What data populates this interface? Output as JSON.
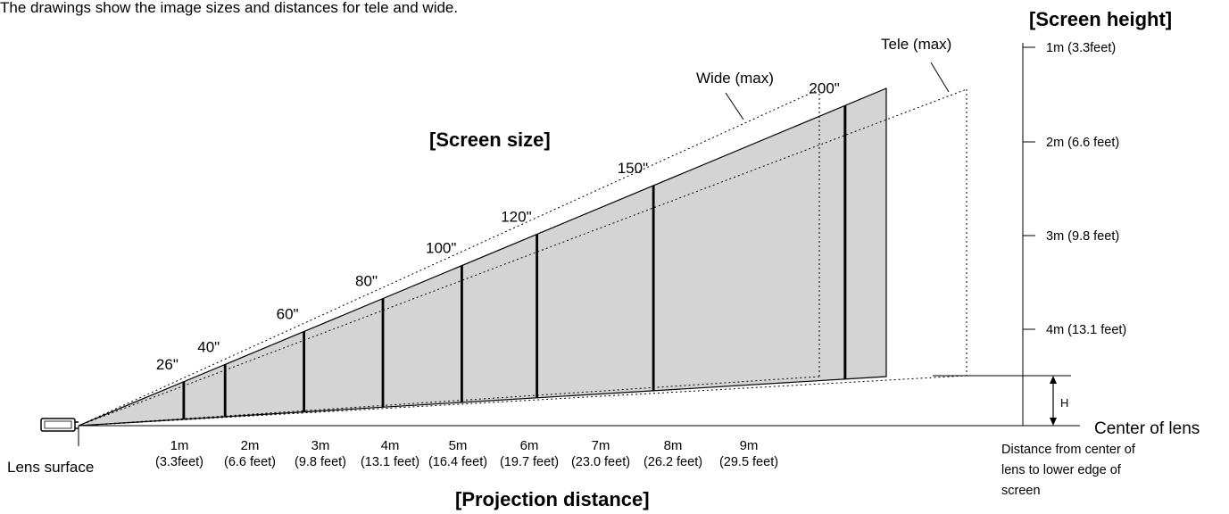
{
  "intro_text": "The drawings show the image sizes and distances for tele and wide.",
  "titles": {
    "screen_size": "[Screen size]",
    "screen_height": "[Screen height]",
    "projection_distance": "[Projection distance]"
  },
  "labels": {
    "wide": "Wide (max)",
    "tele": "Tele (max)",
    "lens_surface": "Lens surface",
    "center_of_lens": "Center of lens",
    "h_marker": "H",
    "lower_edge_note": [
      "Distance from center of",
      "lens to lower edge of",
      "screen"
    ]
  },
  "screen_sizes": [
    {
      "label": "26\"",
      "distance_m": 1.4
    },
    {
      "label": "40\"",
      "distance_m": 1.95
    },
    {
      "label": "60\"",
      "distance_m": 3.0
    },
    {
      "label": "80\"",
      "distance_m": 4.05
    },
    {
      "label": "100\"",
      "distance_m": 5.1
    },
    {
      "label": "120\"",
      "distance_m": 6.1
    },
    {
      "label": "150\"",
      "distance_m": 7.65
    },
    {
      "label": "200\"",
      "distance_m": 10.2
    }
  ],
  "distance_ticks": [
    {
      "metric": "1m",
      "imperial": "(3.3feet)"
    },
    {
      "metric": "2m",
      "imperial": "(6.6 feet)"
    },
    {
      "metric": "3m",
      "imperial": "(9.8 feet)"
    },
    {
      "metric": "4m",
      "imperial": "(13.1 feet)"
    },
    {
      "metric": "5m",
      "imperial": "(16.4 feet)"
    },
    {
      "metric": "6m",
      "imperial": "(19.7 feet)"
    },
    {
      "metric": "7m",
      "imperial": "(23.0 feet)"
    },
    {
      "metric": "8m",
      "imperial": "(26.2 feet)"
    },
    {
      "metric": "9m",
      "imperial": "(29.5 feet)"
    }
  ],
  "height_ticks": [
    {
      "label": "4m (13.1 feet)",
      "value_m": 4
    },
    {
      "label": "3m (9.8 feet)",
      "value_m": 3
    },
    {
      "label": "2m (6.6 feet)",
      "value_m": 2
    },
    {
      "label": "1m (3.3feet)",
      "value_m": 1
    }
  ],
  "colors": {
    "screen_fill": "#d4d4d4",
    "line": "#000000"
  }
}
